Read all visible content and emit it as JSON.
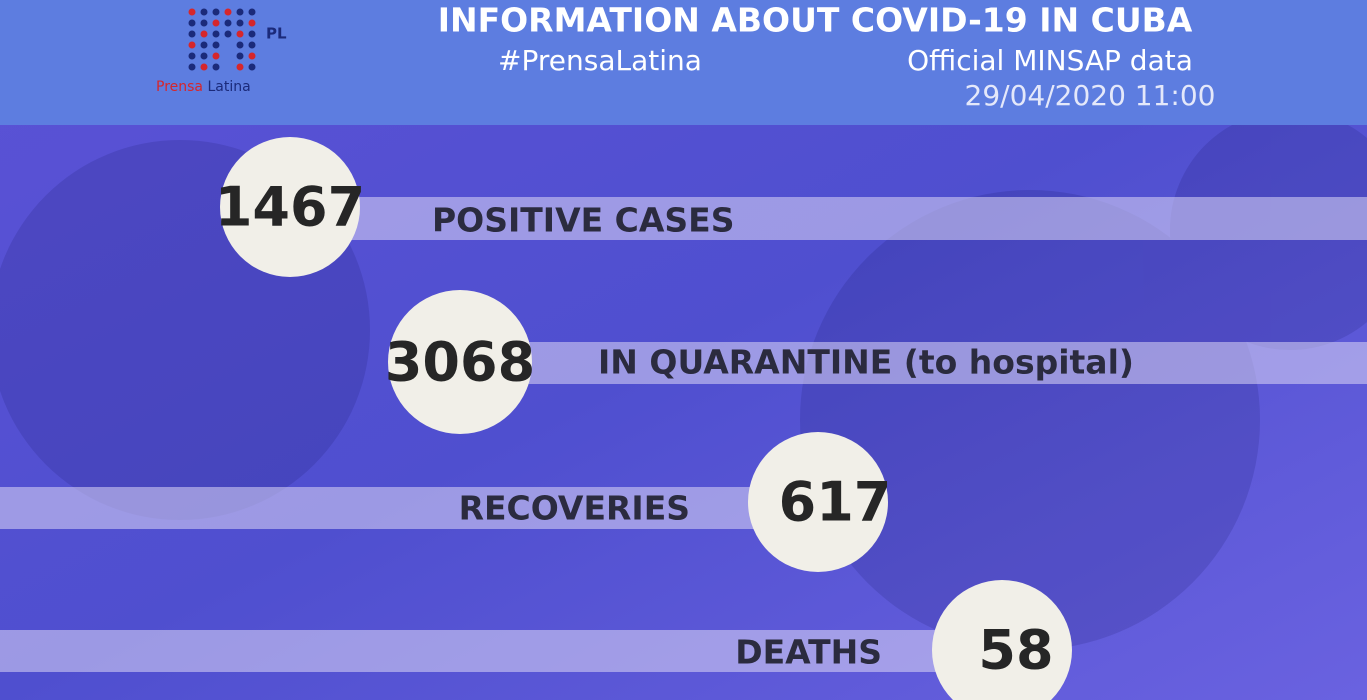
{
  "header": {
    "logo_word1": "Prensa",
    "logo_word2": "Latina",
    "logo_mark": "PL",
    "title": "INFORMATION ABOUT COVID-19 IN CUBA",
    "hashtag": "#PrensaLatina",
    "source": "Official MINSAP data",
    "date": "29/04/2020 11:00"
  },
  "stats": [
    {
      "value": 1467,
      "label": "POSITIVE CASES"
    },
    {
      "value": 3068,
      "label": "IN QUARANTINE (to hospital)"
    },
    {
      "value": 617,
      "label": "RECOVERIES"
    },
    {
      "value": 58,
      "label": "DEATHS"
    }
  ]
}
